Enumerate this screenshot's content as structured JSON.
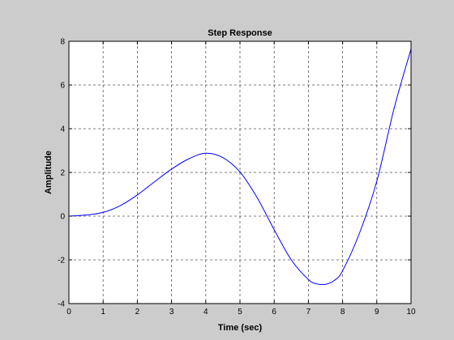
{
  "chart_data": {
    "type": "line",
    "title": "Step Response",
    "xlabel": "Time (sec)",
    "ylabel": "Amplitude",
    "xlim": [
      0,
      10
    ],
    "ylim": [
      -4,
      8
    ],
    "xticks": [
      0,
      1,
      2,
      3,
      4,
      5,
      6,
      7,
      8,
      9,
      10
    ],
    "yticks": [
      -4,
      -2,
      0,
      2,
      4,
      6,
      8
    ],
    "xtick_labels": [
      "0",
      "1",
      "2",
      "3",
      "4",
      "5",
      "6",
      "7",
      "8",
      "9",
      "10"
    ],
    "ytick_labels": [
      "-4",
      "-2",
      "0",
      "2",
      "4",
      "6",
      "8"
    ],
    "grid": true,
    "series": [
      {
        "color": "#0000ff",
        "x": [
          0,
          0.5,
          1,
          1.5,
          2,
          2.5,
          3,
          3.5,
          4,
          4.5,
          5,
          5.5,
          6,
          6.5,
          7,
          7.25,
          7.5,
          7.75,
          8,
          8.5,
          9,
          9.5,
          10
        ],
        "y": [
          0,
          0.05,
          0.17,
          0.48,
          0.97,
          1.57,
          2.15,
          2.62,
          2.88,
          2.68,
          2.02,
          0.85,
          -0.62,
          -2.0,
          -2.9,
          -3.1,
          -3.12,
          -2.95,
          -2.5,
          -0.75,
          1.6,
          4.9,
          7.65
        ]
      }
    ],
    "colors": {
      "background": "#cccccc",
      "plot_area": "#ffffff",
      "grid": "#555555",
      "line": "#0000ff"
    }
  }
}
